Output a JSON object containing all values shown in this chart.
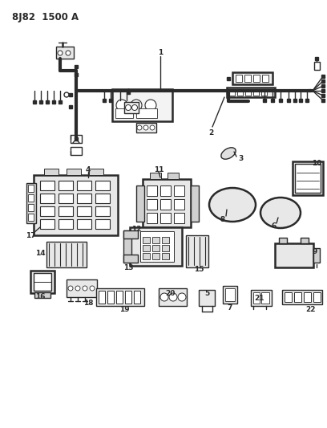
{
  "title": "8J82  1500 A",
  "bg_color": "#ffffff",
  "line_color": "#2a2a2a",
  "title_fontsize": 8.5,
  "label_fontsize": 6.5,
  "fig_width": 4.08,
  "fig_height": 5.33,
  "dpi": 100,
  "lw_thick": 3.0,
  "lw_med": 1.8,
  "lw_thin": 1.0,
  "lw_hair": 0.6
}
